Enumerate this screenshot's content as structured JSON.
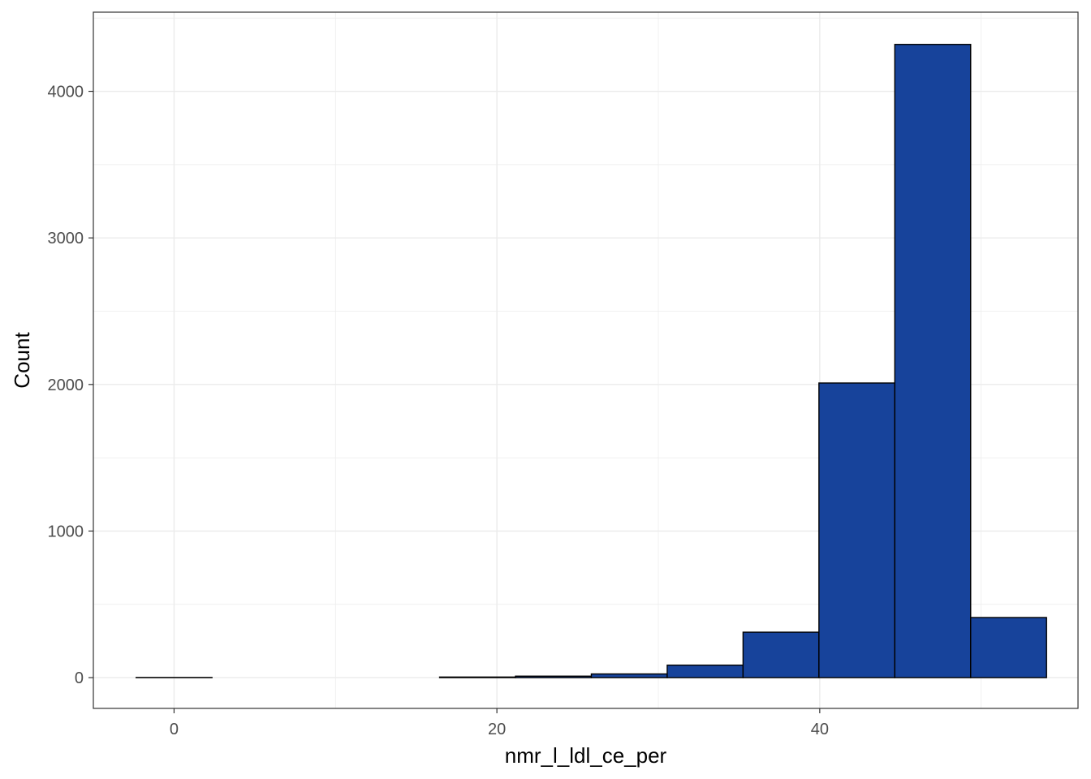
{
  "chart_data": {
    "type": "bar",
    "subtype": "histogram",
    "title": "",
    "xlabel": "nmr_l_ldl_ce_per",
    "ylabel": "Count",
    "xlim": [
      -5,
      56
    ],
    "ylim": [
      -210,
      4540
    ],
    "x_ticks": [
      0,
      20,
      40
    ],
    "y_ticks": [
      0,
      1000,
      2000,
      3000,
      4000
    ],
    "grid": true,
    "legend": "none",
    "bin_width": 4.7,
    "bins": [
      {
        "x0": -2.35,
        "x1": 2.35,
        "count": 1
      },
      {
        "x0": 2.35,
        "x1": 7.05,
        "count": 0
      },
      {
        "x0": 7.05,
        "x1": 11.75,
        "count": 0
      },
      {
        "x0": 11.75,
        "x1": 16.45,
        "count": 0
      },
      {
        "x0": 16.45,
        "x1": 21.15,
        "count": 4
      },
      {
        "x0": 21.15,
        "x1": 25.85,
        "count": 10
      },
      {
        "x0": 25.85,
        "x1": 30.55,
        "count": 25
      },
      {
        "x0": 30.55,
        "x1": 35.25,
        "count": 85
      },
      {
        "x0": 35.25,
        "x1": 39.95,
        "count": 310
      },
      {
        "x0": 39.95,
        "x1": 44.65,
        "count": 2010
      },
      {
        "x0": 44.65,
        "x1": 49.35,
        "count": 4320
      },
      {
        "x0": 49.35,
        "x1": 54.05,
        "count": 410
      }
    ],
    "colors": {
      "fill": "#17439B",
      "outline": "#000000",
      "grid": "#EBEBEB",
      "panel_border": "#333333"
    }
  }
}
